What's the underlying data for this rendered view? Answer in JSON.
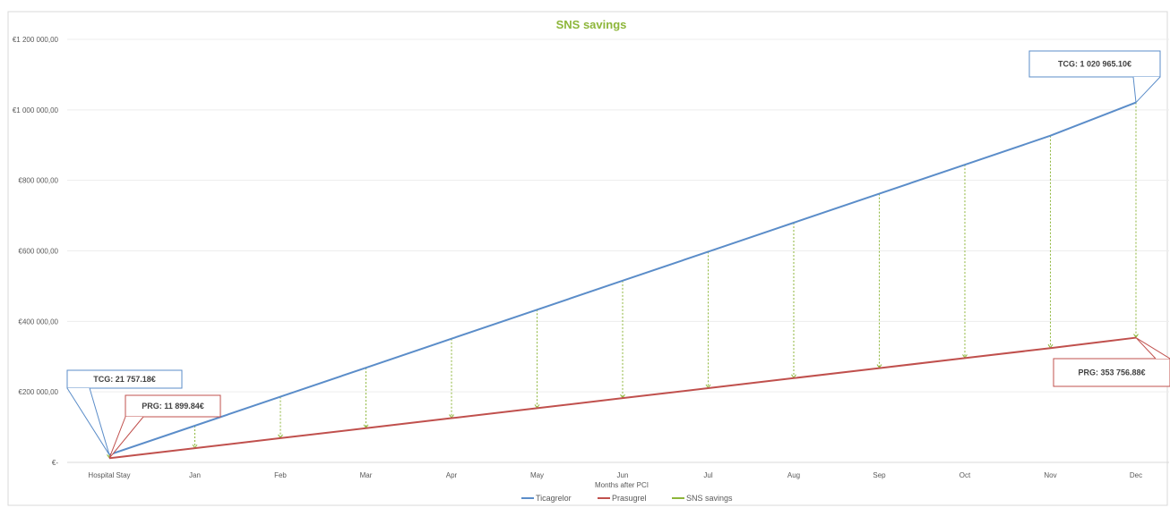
{
  "chart_data": {
    "type": "line",
    "title": "SNS savings",
    "xlabel": "Months after PCI",
    "ylabel": "",
    "categories": [
      "Hospital Stay",
      "Jan",
      "Feb",
      "Mar",
      "Apr",
      "May",
      "Jun",
      "Jul",
      "Aug",
      "Sep",
      "Oct",
      "Nov",
      "Dec"
    ],
    "y_ticks": [
      0,
      200000,
      400000,
      600000,
      800000,
      1000000,
      1200000
    ],
    "y_tick_labels": [
      "€-",
      "€200 000,00",
      "€400 000,00",
      "€600 000,00",
      "€800 000,00",
      "€1 000 000,00",
      "€1 200 000,00"
    ],
    "ylim": [
      0,
      1200000
    ],
    "grid": true,
    "legend_position": "bottom",
    "series": [
      {
        "name": "Ticagrelor",
        "color": "#5B8DC9",
        "values": [
          21757.18,
          104024,
          186291,
          268558,
          350825,
          433092,
          515361,
          597628,
          679895,
          762162,
          844429,
          926696,
          1020965.1
        ]
      },
      {
        "name": "Prasugrel",
        "color": "#C0504D",
        "values": [
          11899.84,
          40288,
          68676,
          97064,
          125452,
          153840,
          182228,
          210616,
          239004,
          267392,
          295780,
          324168,
          353756.88
        ]
      }
    ],
    "savings_series": {
      "name": "SNS savings",
      "color": "#8DB63A"
    },
    "annotations": [
      {
        "id": "tcg-start",
        "text": "TCG: 21 757.18€",
        "color": "#5B8DC9"
      },
      {
        "id": "prg-start",
        "text": "PRG: 11 899.84€",
        "color": "#C0504D"
      },
      {
        "id": "tcg-end",
        "text": "TCG: 1 020 965.10€",
        "color": "#5B8DC9"
      },
      {
        "id": "prg-end",
        "text": "PRG: 353 756.88€",
        "color": "#C0504D"
      }
    ]
  }
}
